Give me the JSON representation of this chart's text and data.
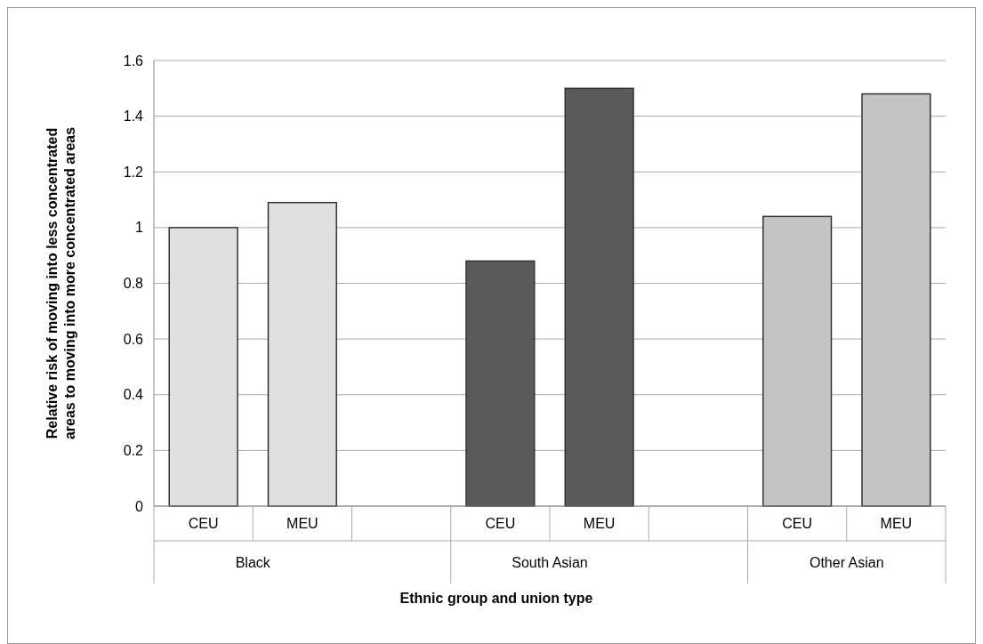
{
  "chart_data": {
    "type": "bar",
    "xlabel": "Ethnic group and union type",
    "ylabel": "Relative risk of moving into less concentrated areas to moving into more concentrated areas",
    "categories": [
      "CEU",
      "MEU",
      null,
      "CEU",
      "MEU",
      null,
      "CEU",
      "MEU"
    ],
    "values": [
      1.0,
      1.09,
      null,
      0.88,
      1.5,
      null,
      1.04,
      1.48
    ],
    "colors": [
      "#e0e0e0",
      "#e0e0e0",
      null,
      "#5a5a5a",
      "#5a5a5a",
      null,
      "#c4c4c4",
      "#c4c4c4"
    ],
    "annotations": [
      "Black",
      "South Asian",
      "Other Asian"
    ],
    "ylim": [
      0,
      1.6
    ],
    "yticks": [
      0,
      0.2,
      0.4,
      0.6,
      0.8,
      1,
      1.2,
      1.4,
      1.6
    ],
    "grid": "y"
  }
}
